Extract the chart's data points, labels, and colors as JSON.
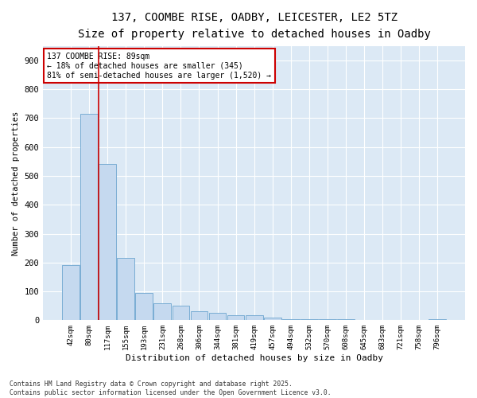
{
  "title1": "137, COOMBE RISE, OADBY, LEICESTER, LE2 5TZ",
  "title2": "Size of property relative to detached houses in Oadby",
  "xlabel": "Distribution of detached houses by size in Oadby",
  "ylabel": "Number of detached properties",
  "bar_labels": [
    "42sqm",
    "80sqm",
    "117sqm",
    "155sqm",
    "193sqm",
    "231sqm",
    "268sqm",
    "306sqm",
    "344sqm",
    "381sqm",
    "419sqm",
    "457sqm",
    "494sqm",
    "532sqm",
    "570sqm",
    "608sqm",
    "645sqm",
    "683sqm",
    "721sqm",
    "758sqm",
    "796sqm"
  ],
  "bar_values": [
    190,
    715,
    540,
    215,
    95,
    60,
    50,
    30,
    27,
    18,
    18,
    10,
    3,
    5,
    5,
    3,
    2,
    2,
    2,
    2,
    5
  ],
  "bar_color": "#c5d9ef",
  "bar_edge_color": "#7aadd4",
  "red_line_x": 1.5,
  "annotation_line1": "137 COOMBE RISE: 89sqm",
  "annotation_line2": "← 18% of detached houses are smaller (345)",
  "annotation_line3": "81% of semi-detached houses are larger (1,520) →",
  "annotation_box_color": "#ffffff",
  "annotation_box_edge": "#cc0000",
  "ylim": [
    0,
    950
  ],
  "yticks": [
    0,
    100,
    200,
    300,
    400,
    500,
    600,
    700,
    800,
    900
  ],
  "background_color": "#dce9f5",
  "footer_line1": "Contains HM Land Registry data © Crown copyright and database right 2025.",
  "footer_line2": "Contains public sector information licensed under the Open Government Licence v3.0.",
  "red_line_color": "#cc0000",
  "title1_fontsize": 10,
  "title2_fontsize": 9
}
